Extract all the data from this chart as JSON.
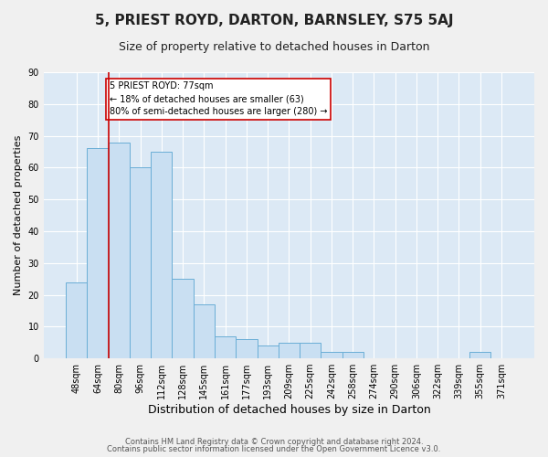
{
  "title": "5, PRIEST ROYD, DARTON, BARNSLEY, S75 5AJ",
  "subtitle": "Size of property relative to detached houses in Darton",
  "xlabel": "Distribution of detached houses by size in Darton",
  "ylabel": "Number of detached properties",
  "bar_color": "#c9dff2",
  "bar_edge_color": "#6aaed6",
  "background_color": "#dce9f5",
  "grid_color": "#ffffff",
  "categories": [
    "48sqm",
    "64sqm",
    "80sqm",
    "96sqm",
    "112sqm",
    "128sqm",
    "145sqm",
    "161sqm",
    "177sqm",
    "193sqm",
    "209sqm",
    "225sqm",
    "242sqm",
    "258sqm",
    "274sqm",
    "290sqm",
    "306sqm",
    "322sqm",
    "339sqm",
    "355sqm",
    "371sqm"
  ],
  "values": [
    24,
    66,
    68,
    60,
    65,
    25,
    17,
    7,
    6,
    4,
    5,
    5,
    2,
    2,
    0,
    0,
    0,
    0,
    0,
    2,
    0
  ],
  "ylim": [
    0,
    90
  ],
  "yticks": [
    0,
    10,
    20,
    30,
    40,
    50,
    60,
    70,
    80,
    90
  ],
  "vline_color": "#cc0000",
  "annotation_text": "5 PRIEST ROYD: 77sqm\n← 18% of detached houses are smaller (63)\n80% of semi-detached houses are larger (280) →",
  "annotation_box_color": "#ffffff",
  "annotation_box_edge": "#cc0000",
  "footer_line1": "Contains HM Land Registry data © Crown copyright and database right 2024.",
  "footer_line2": "Contains public sector information licensed under the Open Government Licence v3.0.",
  "title_fontsize": 11,
  "subtitle_fontsize": 9,
  "xlabel_fontsize": 9,
  "ylabel_fontsize": 8,
  "tick_fontsize": 7,
  "footer_fontsize": 6,
  "fig_bg": "#f0f0f0"
}
